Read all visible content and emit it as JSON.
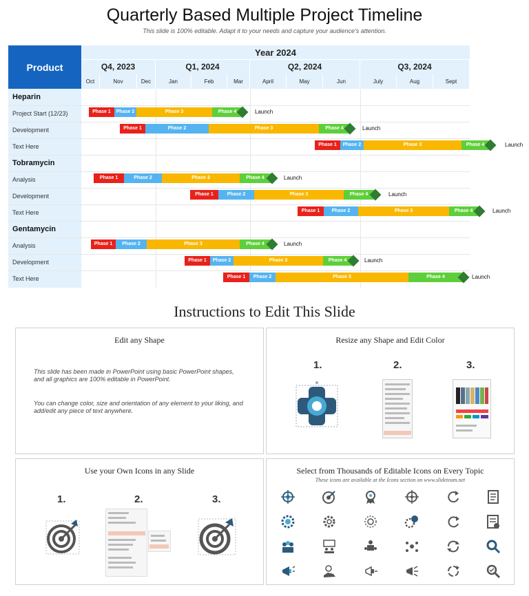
{
  "header": {
    "title": "Quarterly Based Multiple Project Timeline",
    "subtitle": "This slide is 100% editable. Adapt it to your needs and capture your audience's attention."
  },
  "timeline": {
    "product_label": "Product",
    "year": "Year 2024",
    "quarters": [
      "Q4, 2023",
      "Q1, 2024",
      "Q2, 2024",
      "Q3, 2024"
    ],
    "months": [
      "Oct",
      "Nov",
      "Dec",
      "Jan",
      "Feb",
      "Mar",
      "April",
      "May",
      "Jun",
      "July",
      "Aug",
      "Sept"
    ],
    "phase_labels": [
      "Phase 1",
      "Phase 2",
      "Phase 3",
      "Phase 4"
    ],
    "launch_label": "Launch",
    "colors": {
      "header": "#1565c0",
      "grid_bg": "#e3f1fc",
      "phase1": "#e8221b",
      "phase2": "#55b4f0",
      "phase3": "#f9b700",
      "phase4": "#5ecf3a",
      "launch": "#2e7d32"
    },
    "rows": [
      {
        "label": "Heparin",
        "group": true
      },
      {
        "label": "Project Start (12/23)",
        "group": false
      },
      {
        "label": "Development",
        "group": false
      },
      {
        "label": "Text Here",
        "group": false
      },
      {
        "label": "Tobramycin",
        "group": true
      },
      {
        "label": "Analysis",
        "group": false
      },
      {
        "label": "Development",
        "group": false
      },
      {
        "label": "Text Here",
        "group": false
      },
      {
        "label": "Gentamycin",
        "group": true
      },
      {
        "label": "Analysis",
        "group": false
      },
      {
        "label": "Development",
        "group": false
      },
      {
        "label": "Text Here",
        "group": false
      }
    ]
  },
  "instructions": {
    "title": "Instructions to Edit This Slide",
    "panels": {
      "edit_shape": {
        "title": "Edit any Shape",
        "text1": "This slide has been made in PowerPoint using basic PowerPoint shapes, and all graphics are 100% editable in PowerPoint.",
        "text2": "You can change color, size and orientation of any element to your liking, and add/edit any piece of text anywhere."
      },
      "resize": {
        "title": "Resize any Shape and Edit Color",
        "steps": [
          "1.",
          "2.",
          "3."
        ]
      },
      "own_icons": {
        "title": "Use your Own Icons in any Slide",
        "steps": [
          "1.",
          "2.",
          "3."
        ]
      },
      "editable_icons": {
        "title": "Select from Thousands of Editable Icons on Every Topic",
        "subtitle": "These icons are available at the Icons section on www.slideteam.net"
      }
    }
  }
}
